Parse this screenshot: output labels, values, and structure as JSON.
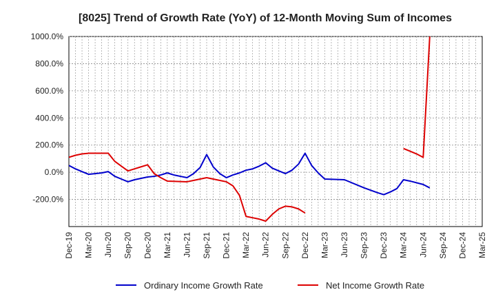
{
  "chart_data": {
    "type": "line",
    "title": "[8025]  Trend of Growth Rate (YoY) of 12-Month Moving Sum of Incomes",
    "xlabel": "",
    "ylabel": "",
    "x_tick_labels": [
      "Dec-19",
      "Mar-20",
      "Jun-20",
      "Sep-20",
      "Dec-20",
      "Mar-21",
      "Jun-21",
      "Sep-21",
      "Dec-21",
      "Mar-22",
      "Jun-22",
      "Sep-22",
      "Dec-22",
      "Mar-23",
      "Jun-23",
      "Sep-23",
      "Dec-23",
      "Mar-24",
      "Jun-24",
      "Sep-24",
      "Dec-24",
      "Mar-25"
    ],
    "y_tick_labels": [
      "1000.0%",
      "800.0%",
      "600.0%",
      "400.0%",
      "200.0%",
      "0.0%",
      "-200.0%"
    ],
    "ylim": [
      -400,
      1000
    ],
    "grid": true,
    "legend_position": "bottom",
    "series": [
      {
        "name": "Ordinary Income Growth Rate",
        "color": "#0000cc",
        "points": [
          [
            "Dec-19",
            50
          ],
          [
            "Jan-20",
            25
          ],
          [
            "Feb-20",
            5
          ],
          [
            "Mar-20",
            -15
          ],
          [
            "Apr-20",
            -10
          ],
          [
            "May-20",
            -5
          ],
          [
            "Jun-20",
            5
          ],
          [
            "Jul-20",
            -30
          ],
          [
            "Aug-20",
            -50
          ],
          [
            "Sep-20",
            -70
          ],
          [
            "Oct-20",
            -55
          ],
          [
            "Nov-20",
            -45
          ],
          [
            "Dec-20",
            -35
          ],
          [
            "Jan-21",
            -30
          ],
          [
            "Feb-21",
            -20
          ],
          [
            "Mar-21",
            -5
          ],
          [
            "Apr-21",
            -20
          ],
          [
            "May-21",
            -30
          ],
          [
            "Jun-21",
            -40
          ],
          [
            "Jul-21",
            -10
          ],
          [
            "Aug-21",
            35
          ],
          [
            "Sep-21",
            130
          ],
          [
            "Oct-21",
            40
          ],
          [
            "Nov-21",
            -10
          ],
          [
            "Dec-21",
            -40
          ],
          [
            "Jan-22",
            -20
          ],
          [
            "Feb-22",
            -5
          ],
          [
            "Mar-22",
            15
          ],
          [
            "Apr-22",
            25
          ],
          [
            "May-22",
            45
          ],
          [
            "Jun-22",
            70
          ],
          [
            "Jul-22",
            30
          ],
          [
            "Aug-22",
            10
          ],
          [
            "Sep-22",
            -10
          ],
          [
            "Oct-22",
            15
          ],
          [
            "Nov-22",
            60
          ],
          [
            "Dec-22",
            140
          ],
          [
            "Jan-23",
            50
          ],
          [
            "Feb-23",
            -5
          ],
          [
            "Mar-23",
            -50
          ],
          [
            "Jun-23",
            -55
          ],
          [
            "Sep-23",
            -115
          ],
          [
            "Nov-23",
            -150
          ],
          [
            "Dec-23",
            -165
          ],
          [
            "Jan-24",
            -145
          ],
          [
            "Feb-24",
            -120
          ],
          [
            "Mar-24",
            -55
          ],
          [
            "Apr-24",
            -65
          ],
          [
            "Jun-24",
            -90
          ],
          [
            "Jul-24",
            -115
          ]
        ]
      },
      {
        "name": "Net Income Growth Rate",
        "color": "#dd0000",
        "segments": [
          [
            [
              "Dec-19",
              110
            ],
            [
              "Jan-20",
              125
            ],
            [
              "Feb-20",
              135
            ],
            [
              "Mar-20",
              140
            ],
            [
              "Apr-20",
              140
            ],
            [
              "May-20",
              140
            ],
            [
              "Jun-20",
              140
            ],
            [
              "Jul-20",
              80
            ],
            [
              "Aug-20",
              45
            ],
            [
              "Sep-20",
              10
            ],
            [
              "Oct-20",
              25
            ],
            [
              "Nov-20",
              40
            ],
            [
              "Dec-20",
              55
            ],
            [
              "Jan-21",
              -10
            ],
            [
              "Feb-21",
              -40
            ],
            [
              "Mar-21",
              -65
            ],
            [
              "Jun-21",
              -70
            ],
            [
              "Jul-21",
              -60
            ],
            [
              "Aug-21",
              -50
            ],
            [
              "Sep-21",
              -40
            ],
            [
              "Oct-21",
              -50
            ],
            [
              "Nov-21",
              -60
            ],
            [
              "Dec-21",
              -70
            ],
            [
              "Jan-22",
              -100
            ],
            [
              "Feb-22",
              -170
            ],
            [
              "Mar-22",
              -325
            ],
            [
              "Apr-22",
              -335
            ],
            [
              "May-22",
              -345
            ],
            [
              "Jun-22",
              -360
            ],
            [
              "Jul-22",
              -310
            ],
            [
              "Aug-22",
              -270
            ],
            [
              "Sep-22",
              -250
            ],
            [
              "Oct-22",
              -255
            ],
            [
              "Nov-22",
              -270
            ],
            [
              "Dec-22",
              -300
            ]
          ],
          [
            [
              "Mar-24",
              175
            ],
            [
              "Apr-24",
              155
            ],
            [
              "May-24",
              135
            ],
            [
              "Jun-24",
              110
            ],
            [
              "Jul-24",
              1000
            ]
          ]
        ]
      }
    ]
  }
}
